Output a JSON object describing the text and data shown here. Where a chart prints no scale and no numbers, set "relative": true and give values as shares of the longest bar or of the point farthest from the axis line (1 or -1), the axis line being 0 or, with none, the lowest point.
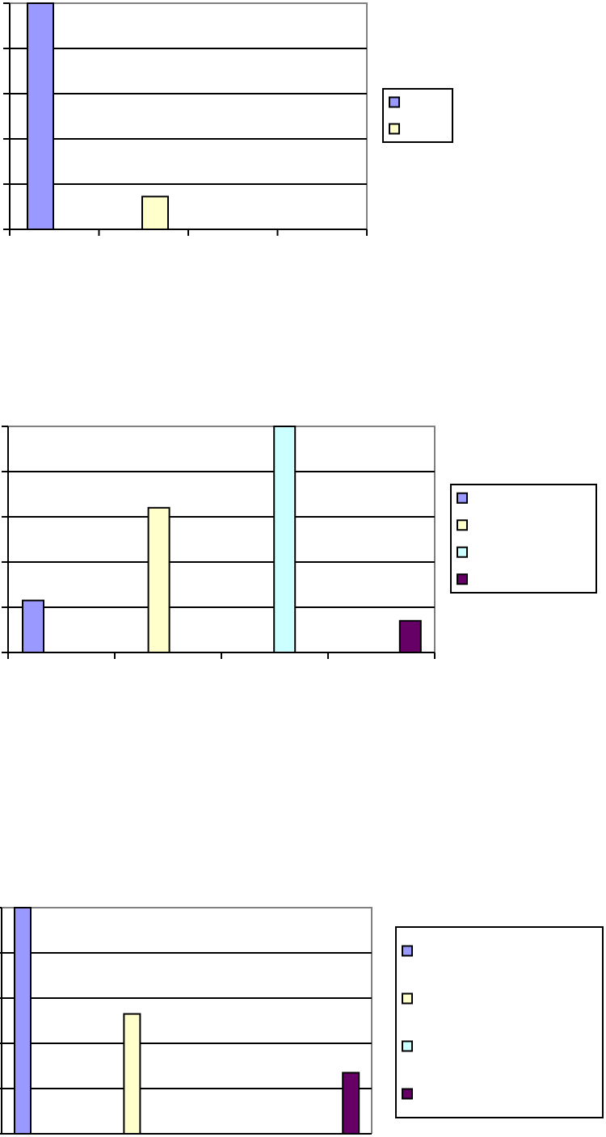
{
  "chart_data": [
    {
      "type": "bar",
      "relative": true,
      "categories": [
        null,
        null
      ],
      "values": [
        1,
        0.145
      ],
      "colors": [
        "#9999ff",
        "#ffffcc"
      ],
      "grid": "y"
    },
    {
      "type": "bar",
      "relative": true,
      "categories": [
        null,
        null,
        null,
        null
      ],
      "values": [
        0.23,
        0.64,
        1,
        0.14
      ],
      "colors": [
        "#9999ff",
        "#ffffcc",
        "#ccffff",
        "#660066"
      ],
      "grid": "y"
    },
    {
      "type": "bar",
      "relative": true,
      "categories": [
        null,
        null,
        null,
        null
      ],
      "values": [
        1,
        0.53,
        null,
        0.27
      ],
      "colors": [
        "#9999ff",
        "#ffffcc",
        "#ccffff",
        "#660066"
      ],
      "grid": "y"
    }
  ]
}
